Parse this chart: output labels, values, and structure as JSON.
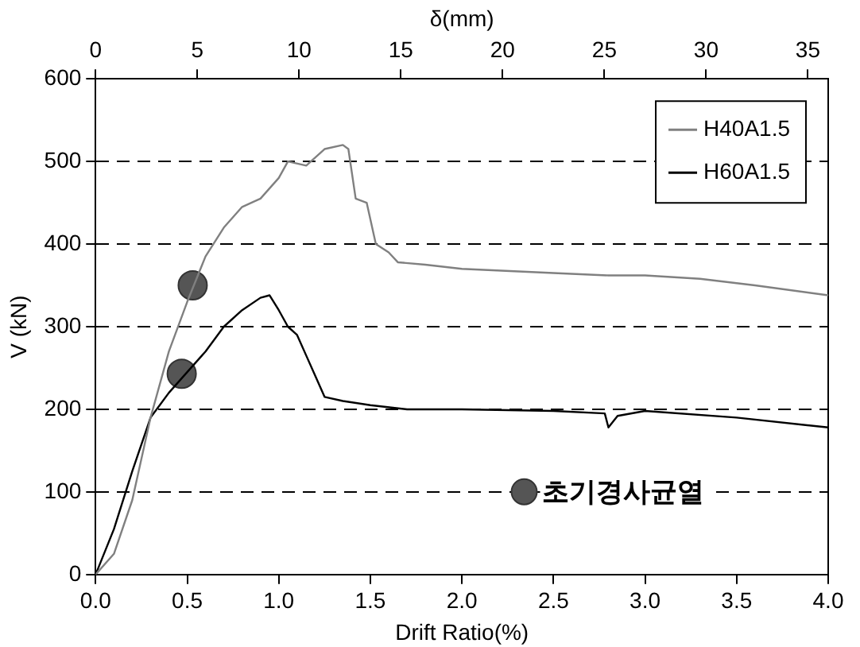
{
  "chart_data": {
    "type": "line",
    "xlabel": "Drift Ratio(%)",
    "ylabel": "V (kN)",
    "x2label": "δ(mm)",
    "xlim": [
      0,
      4.0
    ],
    "xticks": [
      {
        "value": 0,
        "label": "0.0"
      },
      {
        "value": 0.5,
        "label": "0.5"
      },
      {
        "value": 1,
        "label": "1.0"
      },
      {
        "value": 1.5,
        "label": "1.5"
      },
      {
        "value": 2,
        "label": "2.0"
      },
      {
        "value": 2.5,
        "label": "2.5"
      },
      {
        "value": 3,
        "label": "3.0"
      },
      {
        "value": 3.5,
        "label": "3.5"
      },
      {
        "value": 4,
        "label": "4.0"
      }
    ],
    "x2lim": [
      0,
      36
    ],
    "x2ticks": [
      0,
      5,
      10,
      15,
      20,
      25,
      30,
      35
    ],
    "ylim": [
      0,
      600
    ],
    "yticks": [
      0,
      100,
      200,
      300,
      400,
      500,
      600
    ],
    "grid": "y",
    "legend": "top right",
    "line_style": "solid",
    "marker": "none",
    "series": [
      {
        "name": "H40A1.5",
        "color": "#808080",
        "x": [
          0,
          0.1,
          0.2,
          0.3,
          0.4,
          0.5,
          0.6,
          0.7,
          0.8,
          0.9,
          1.0,
          1.05,
          1.15,
          1.25,
          1.35,
          1.38,
          1.42,
          1.48,
          1.53,
          1.6,
          1.65,
          1.8,
          2.0,
          2.5,
          2.8,
          3.0,
          3.3,
          3.6,
          4.0
        ],
        "values": [
          0,
          25,
          90,
          190,
          270,
          330,
          385,
          420,
          445,
          455,
          480,
          500,
          495,
          515,
          520,
          515,
          455,
          450,
          400,
          390,
          378,
          375,
          370,
          365,
          362,
          362,
          358,
          350,
          338
        ]
      },
      {
        "name": "H60A1.5",
        "color": "#000000",
        "x": [
          0,
          0.1,
          0.2,
          0.3,
          0.4,
          0.5,
          0.6,
          0.7,
          0.8,
          0.9,
          0.95,
          1.0,
          1.05,
          1.1,
          1.15,
          1.2,
          1.25,
          1.35,
          1.5,
          1.7,
          2.0,
          2.5,
          2.78,
          2.8,
          2.85,
          3.0,
          3.5,
          4.0
        ],
        "values": [
          0,
          55,
          125,
          190,
          220,
          245,
          270,
          300,
          320,
          335,
          338,
          320,
          300,
          290,
          265,
          240,
          215,
          210,
          205,
          200,
          200,
          198,
          195,
          178,
          192,
          198,
          190,
          178
        ]
      },
      {
        "name": "초기경사균열",
        "type": "scatter",
        "marker": "circle",
        "color": "#555555",
        "x": [
          0.53,
          0.47
        ],
        "values": [
          350,
          243
        ]
      }
    ]
  }
}
